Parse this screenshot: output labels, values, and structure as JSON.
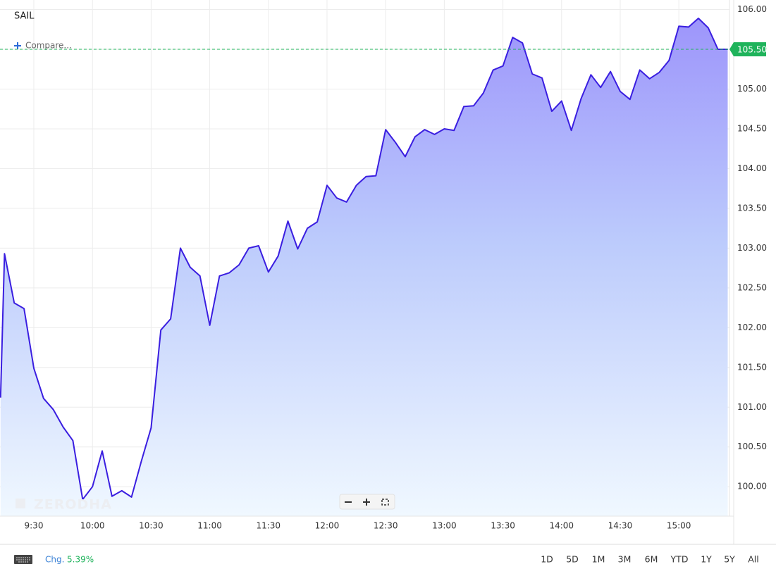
{
  "symbol": "SAIL",
  "compare": "Compare...",
  "watermark": "ZERODHA",
  "footer": {
    "change_label": "Chg.",
    "change_value": "5.39%",
    "ranges": [
      "1D",
      "5D",
      "1M",
      "3M",
      "6M",
      "YTD",
      "1Y",
      "5Y",
      "All"
    ]
  },
  "chart_data": {
    "type": "area",
    "x": [
      553,
      555,
      560,
      565,
      570,
      575,
      580,
      585,
      590,
      595,
      600,
      605,
      610,
      615,
      620,
      625,
      630,
      635,
      640,
      645,
      650,
      655,
      660,
      665,
      670,
      675,
      680,
      685,
      690,
      695,
      700,
      705,
      710,
      715,
      720,
      725,
      730,
      735,
      740,
      745,
      750,
      755,
      760,
      765,
      770,
      775,
      780,
      785,
      790,
      795,
      800,
      805,
      810,
      815,
      820,
      825,
      830,
      835,
      840,
      845,
      850,
      855,
      860,
      865,
      870,
      875,
      880,
      885,
      890,
      895,
      900,
      905,
      910,
      915,
      920,
      925
    ],
    "series": [
      {
        "name": "SAIL",
        "color": "#3a1ee0",
        "values": [
          101.12,
          102.93,
          102.31,
          102.24,
          101.49,
          101.11,
          100.97,
          100.75,
          100.58,
          99.84,
          100.0,
          100.45,
          99.88,
          99.95,
          99.87,
          100.32,
          100.74,
          101.97,
          102.11,
          103.0,
          102.76,
          102.65,
          102.03,
          102.65,
          102.69,
          102.79,
          103.0,
          103.03,
          102.7,
          102.9,
          103.34,
          102.99,
          103.25,
          103.33,
          103.79,
          103.63,
          103.58,
          103.79,
          103.9,
          103.91,
          104.49,
          104.33,
          104.15,
          104.4,
          104.49,
          104.43,
          104.5,
          104.48,
          104.78,
          104.79,
          104.95,
          105.24,
          105.29,
          105.65,
          105.58,
          105.19,
          105.14,
          104.72,
          104.85,
          104.48,
          104.88,
          105.18,
          105.02,
          105.22,
          104.97,
          104.87,
          105.24,
          105.13,
          105.21,
          105.36,
          105.79,
          105.78,
          105.89,
          105.77,
          105.5,
          105.5
        ]
      }
    ],
    "xlim": [
      552.7,
      925.9
    ],
    "xticks": [
      {
        "value": 570,
        "label": "9:30"
      },
      {
        "value": 600,
        "label": "10:00"
      },
      {
        "value": 630,
        "label": "10:30"
      },
      {
        "value": 660,
        "label": "11:00"
      },
      {
        "value": 690,
        "label": "11:30"
      },
      {
        "value": 720,
        "label": "12:00"
      },
      {
        "value": 750,
        "label": "12:30"
      },
      {
        "value": 780,
        "label": "13:00"
      },
      {
        "value": 810,
        "label": "13:30"
      },
      {
        "value": 840,
        "label": "14:00"
      },
      {
        "value": 870,
        "label": "14:30"
      },
      {
        "value": 900,
        "label": "15:00"
      }
    ],
    "ylim": [
      99.63,
      106.12
    ],
    "yticks": [
      {
        "value": 100,
        "label": "100.00"
      },
      {
        "value": 100.5,
        "label": "100.50"
      },
      {
        "value": 101,
        "label": "101.00"
      },
      {
        "value": 101.5,
        "label": "101.50"
      },
      {
        "value": 102,
        "label": "102.00"
      },
      {
        "value": 102.5,
        "label": "102.50"
      },
      {
        "value": 103,
        "label": "103.00"
      },
      {
        "value": 103.5,
        "label": "103.50"
      },
      {
        "value": 104,
        "label": "104.00"
      },
      {
        "value": 104.5,
        "label": "104.50"
      },
      {
        "value": 105,
        "label": "105.00"
      },
      {
        "value": 105.5,
        "label": "105.50"
      },
      {
        "value": 106,
        "label": "106.00"
      }
    ],
    "grid": true,
    "price_line": {
      "value": 105.5,
      "label": "105.50",
      "color": "#1fb35b"
    }
  }
}
